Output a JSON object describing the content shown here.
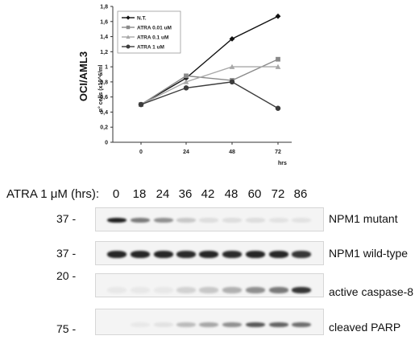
{
  "chart_data": {
    "type": "line",
    "title": "",
    "cell_line": "OCI/AML3",
    "xlabel": "hrs",
    "ylabel": "n° cells (x10^6/ml",
    "x": [
      0,
      24,
      48,
      72
    ],
    "x_ticks": [
      "0",
      "24",
      "48",
      "72"
    ],
    "ylim": [
      0,
      1.8
    ],
    "y_ticks": [
      "0",
      "0,2",
      "0,4",
      "0,6",
      "0,8",
      "1",
      "1,2",
      "1,4",
      "1,6",
      "1,8"
    ],
    "grid": false,
    "legend_position": "top-left",
    "series": [
      {
        "name": "N.T.",
        "values": [
          0.5,
          0.85,
          1.37,
          1.67
        ],
        "color": "#111111",
        "marker": "diamond"
      },
      {
        "name": "ATRA 0.01 uM",
        "values": [
          0.5,
          0.88,
          0.82,
          1.1
        ],
        "color": "#8a8a8a",
        "marker": "square"
      },
      {
        "name": "ATRA 0.1 uM",
        "values": [
          0.5,
          0.8,
          1.0,
          1.0
        ],
        "color": "#a8a8a8",
        "marker": "triangle"
      },
      {
        "name": "ATRA 1 uM",
        "values": [
          0.5,
          0.72,
          0.8,
          0.45
        ],
        "color": "#3c3c3c",
        "marker": "circle"
      }
    ]
  },
  "blot": {
    "treatment_label": "ATRA 1 μM (hrs):",
    "timepoints": [
      "0",
      "18",
      "24",
      "36",
      "42",
      "48",
      "60",
      "72",
      "86"
    ],
    "panels": [
      {
        "label": "NPM1 mutant",
        "marker": "37 -",
        "intensities": [
          0.95,
          0.55,
          0.45,
          0.2,
          0.1,
          0.1,
          0.1,
          0.08,
          0.08
        ]
      },
      {
        "label": "NPM1 wild-type",
        "marker": "37 -",
        "intensities": [
          0.92,
          0.92,
          0.92,
          0.9,
          0.92,
          0.9,
          0.92,
          0.92,
          0.85
        ]
      },
      {
        "label": "active caspase-8",
        "marker": "20 -",
        "intensities": [
          0.05,
          0.05,
          0.05,
          0.15,
          0.2,
          0.3,
          0.45,
          0.55,
          0.85
        ]
      },
      {
        "label": "cleaved PARP",
        "marker": "75 -",
        "intensities": [
          0.0,
          0.05,
          0.08,
          0.25,
          0.35,
          0.45,
          0.7,
          0.65,
          0.6
        ]
      }
    ]
  }
}
